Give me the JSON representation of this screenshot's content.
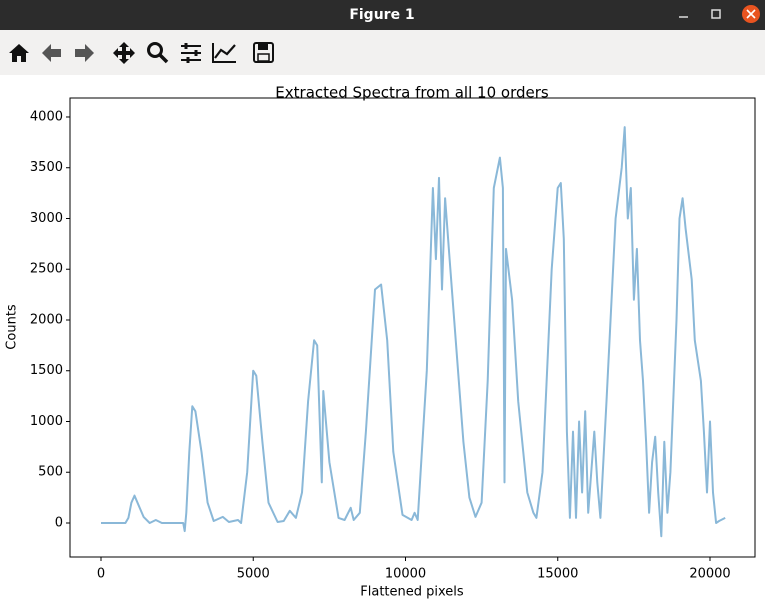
{
  "window": {
    "title": "Figure 1"
  },
  "chart_data": {
    "type": "line",
    "title": "Extracted Spectra from all 10 orders",
    "xlabel": "Flattened pixels",
    "ylabel": "Counts",
    "color": "#8ab8d8",
    "x": [
      0,
      800,
      900,
      1000,
      1100,
      1200,
      1400,
      1600,
      1800,
      2000,
      2500,
      2700,
      2750,
      2800,
      2900,
      3000,
      3100,
      3300,
      3500,
      3700,
      4000,
      4200,
      4500,
      4600,
      4800,
      5000,
      5100,
      5300,
      5500,
      5800,
      6000,
      6200,
      6400,
      6600,
      6800,
      7000,
      7100,
      7250,
      7300,
      7500,
      7800,
      8000,
      8200,
      8300,
      8500,
      8700,
      9000,
      9200,
      9400,
      9600,
      9900,
      10200,
      10300,
      10400,
      10700,
      10900,
      11000,
      11100,
      11200,
      11300,
      11450,
      11600,
      11900,
      12100,
      12300,
      12500,
      12700,
      12900,
      13100,
      13200,
      13250,
      13300,
      13500,
      13700,
      14000,
      14200,
      14300,
      14500,
      14800,
      15000,
      15100,
      15200,
      15300,
      15400,
      15500,
      15600,
      15700,
      15800,
      15900,
      16000,
      16200,
      16300,
      16400,
      16600,
      16900,
      17100,
      17200,
      17300,
      17400,
      17500,
      17600,
      17700,
      17800,
      17900,
      18000,
      18100,
      18200,
      18300,
      18400,
      18500,
      18600,
      18700,
      18900,
      19000,
      19100,
      19200,
      19400,
      19500,
      19700,
      19800,
      19900,
      20000,
      20100,
      20200,
      20300,
      20500
    ],
    "values": [
      0,
      0,
      50,
      200,
      270,
      200,
      60,
      0,
      30,
      0,
      0,
      0,
      -80,
      100,
      700,
      1150,
      1100,
      700,
      200,
      20,
      60,
      10,
      30,
      0,
      500,
      1500,
      1450,
      800,
      200,
      10,
      20,
      120,
      50,
      300,
      1200,
      1800,
      1750,
      400,
      1300,
      600,
      50,
      30,
      150,
      30,
      100,
      900,
      2300,
      2350,
      1800,
      700,
      80,
      30,
      100,
      30,
      1500,
      3300,
      2600,
      3400,
      2300,
      3200,
      2600,
      2000,
      800,
      250,
      60,
      200,
      1400,
      3300,
      3600,
      3300,
      400,
      2700,
      2200,
      1200,
      300,
      100,
      50,
      500,
      2500,
      3300,
      3350,
      2800,
      900,
      50,
      900,
      50,
      1000,
      300,
      1100,
      100,
      900,
      400,
      50,
      1200,
      3000,
      3500,
      3900,
      3000,
      3300,
      2200,
      2700,
      1800,
      1400,
      800,
      100,
      600,
      850,
      300,
      -130,
      800,
      100,
      500,
      2000,
      3000,
      3200,
      2900,
      2400,
      1800,
      1400,
      900,
      300,
      1000,
      300,
      0,
      20,
      50
    ],
    "xlim": [
      -1018,
      21478
    ],
    "ylim": [
      -335,
      4187
    ],
    "xticks": [
      0,
      5000,
      10000,
      15000,
      20000
    ],
    "yticks": [
      0,
      500,
      1000,
      1500,
      2000,
      2500,
      3000,
      3500,
      4000
    ]
  }
}
